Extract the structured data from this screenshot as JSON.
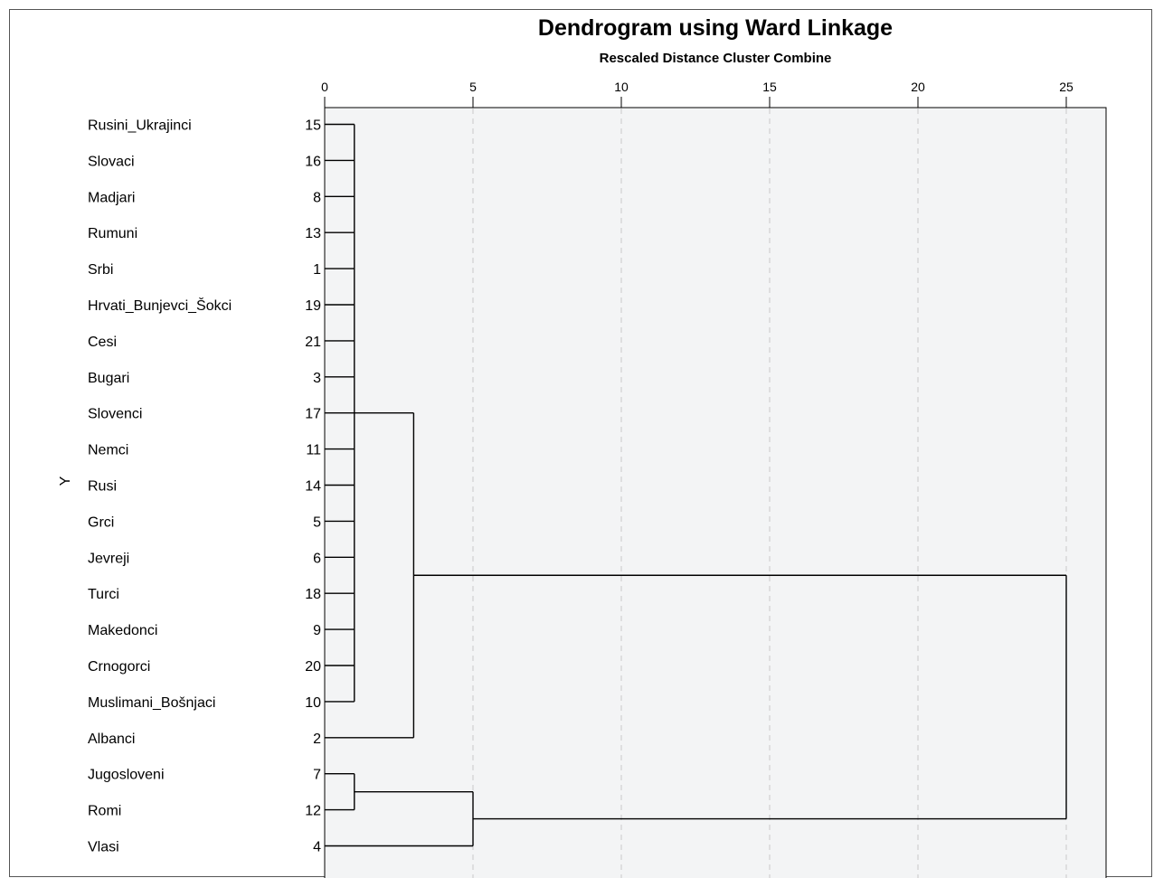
{
  "chart_data": {
    "type": "dendrogram",
    "title": "Dendrogram using Ward Linkage",
    "subtitle": "Rescaled Distance Cluster Combine",
    "ylabel": "Y",
    "xlim": [
      0,
      26.3
    ],
    "ticks": [
      0,
      5,
      10,
      15,
      20,
      25
    ],
    "grid": true,
    "leaves": [
      {
        "label": "Rusini_Ukrajinci",
        "id": "15"
      },
      {
        "label": "Slovaci",
        "id": "16"
      },
      {
        "label": "Madjari",
        "id": "8"
      },
      {
        "label": "Rumuni",
        "id": "13"
      },
      {
        "label": "Srbi",
        "id": "1"
      },
      {
        "label": "Hrvati_Bunjevci_Šokci",
        "id": "19"
      },
      {
        "label": "Cesi",
        "id": "21"
      },
      {
        "label": "Bugari",
        "id": "3"
      },
      {
        "label": "Slovenci",
        "id": "17"
      },
      {
        "label": "Nemci",
        "id": "11"
      },
      {
        "label": "Rusi",
        "id": "14"
      },
      {
        "label": "Grci",
        "id": "5"
      },
      {
        "label": "Jevreji",
        "id": "6"
      },
      {
        "label": "Turci",
        "id": "18"
      },
      {
        "label": "Makedonci",
        "id": "9"
      },
      {
        "label": "Crnogorci",
        "id": "20"
      },
      {
        "label": "Muslimani_Bošnjaci",
        "id": "10"
      },
      {
        "label": "Albanci",
        "id": "2"
      },
      {
        "label": "Jugosloveni",
        "id": "7"
      },
      {
        "label": "Romi",
        "id": "12"
      },
      {
        "label": "Vlasi",
        "id": "4"
      }
    ],
    "merges": [
      {
        "children": [
          0,
          1,
          2,
          3,
          4,
          5,
          6,
          7,
          8,
          9,
          10,
          11,
          12,
          13,
          14,
          15,
          16
        ],
        "height": 1.0
      },
      {
        "children": [
          "m0",
          17
        ],
        "height": 3.0
      },
      {
        "children": [
          18,
          19
        ],
        "height": 1.0
      },
      {
        "children": [
          "m2",
          20
        ],
        "height": 5.0
      },
      {
        "children": [
          "m1",
          "m3"
        ],
        "height": 25.0
      }
    ]
  }
}
